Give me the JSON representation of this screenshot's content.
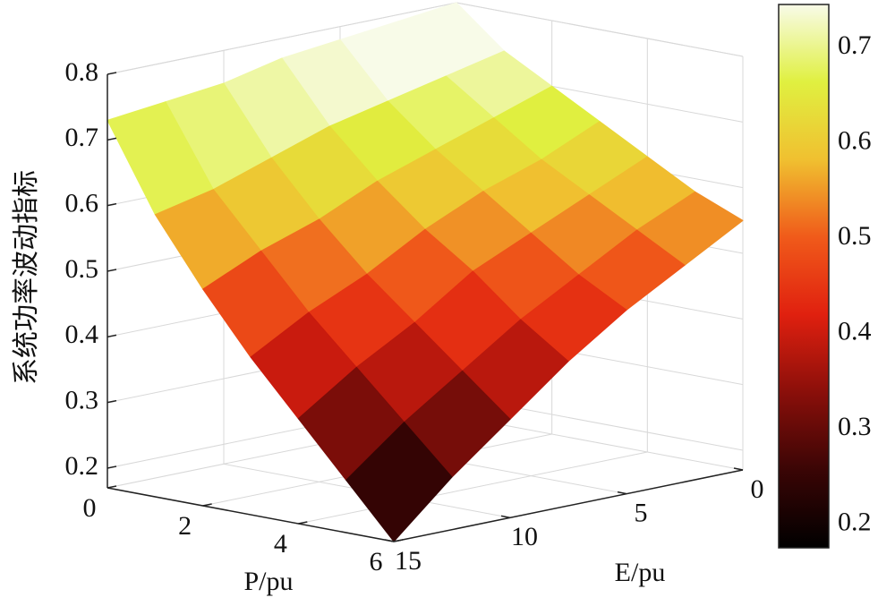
{
  "chart_data": {
    "type": "surface",
    "xlabel": "P/pu",
    "ylabel": "E/pu",
    "zlabel": "系统功率波动指标",
    "x": [
      0,
      1,
      2,
      3,
      4,
      5,
      6
    ],
    "y": [
      0,
      2.5,
      5,
      7.5,
      10,
      12.5,
      15
    ],
    "z": [
      [
        0.8,
        0.74,
        0.7,
        0.66,
        0.62,
        0.58,
        0.55
      ],
      [
        0.79,
        0.72,
        0.67,
        0.62,
        0.58,
        0.54,
        0.5
      ],
      [
        0.78,
        0.7,
        0.64,
        0.59,
        0.54,
        0.49,
        0.45
      ],
      [
        0.77,
        0.68,
        0.61,
        0.55,
        0.5,
        0.44,
        0.39
      ],
      [
        0.75,
        0.65,
        0.57,
        0.5,
        0.44,
        0.38,
        0.32
      ],
      [
        0.74,
        0.62,
        0.54,
        0.46,
        0.39,
        0.32,
        0.25
      ],
      [
        0.73,
        0.6,
        0.5,
        0.41,
        0.33,
        0.25,
        0.17
      ]
    ],
    "xlim": [
      0,
      6
    ],
    "xticks": [
      0,
      2,
      4,
      6
    ],
    "ylim": [
      0,
      15
    ],
    "yticks": [
      0,
      5,
      10,
      15
    ],
    "zlim": [
      0.17,
      0.8
    ],
    "zticks": [
      0.2,
      0.3,
      0.4,
      0.5,
      0.6,
      0.7,
      0.8
    ],
    "clim": [
      0.175,
      0.745
    ],
    "cticks": [
      0.2,
      0.3,
      0.4,
      0.5,
      0.6,
      0.7
    ],
    "colormap": [
      "#000000",
      "#3a0505",
      "#8a0f0a",
      "#e0200f",
      "#f05a1a",
      "#f0c030",
      "#e0f040",
      "#f8fbe8"
    ],
    "grid": true
  }
}
